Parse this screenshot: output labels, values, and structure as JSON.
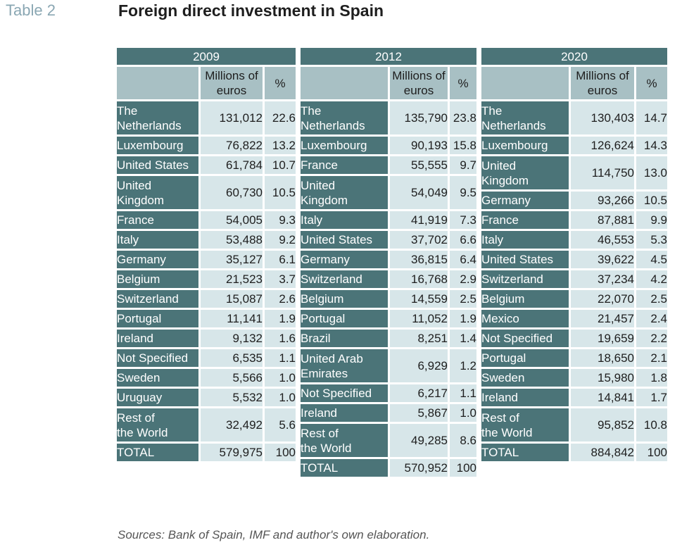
{
  "table_label": "Table 2",
  "title": "Foreign direct investment in Spain",
  "source": "Sources: Bank of Spain, IMF and author's own elaboration.",
  "tables": [
    {
      "year": "2009",
      "col_millions": "Millions of euros",
      "col_pct": "%",
      "rows": [
        {
          "country": "The Netherlands",
          "value": "131,012",
          "pct": "22.6"
        },
        {
          "country": "Luxembourg",
          "value": "76,822",
          "pct": "13.2"
        },
        {
          "country": "United States",
          "value": "61,784",
          "pct": "10.7"
        },
        {
          "country": "United Kingdom",
          "value": "60,730",
          "pct": "10.5"
        },
        {
          "country": "France",
          "value": "54,005",
          "pct": "9.3"
        },
        {
          "country": "Italy",
          "value": "53,488",
          "pct": "9.2"
        },
        {
          "country": "Germany",
          "value": "35,127",
          "pct": "6.1"
        },
        {
          "country": "Belgium",
          "value": "21,523",
          "pct": "3.7"
        },
        {
          "country": "Switzerland",
          "value": "15,087",
          "pct": "2.6"
        },
        {
          "country": "Portugal",
          "value": "11,141",
          "pct": "1.9"
        },
        {
          "country": "Ireland",
          "value": "9,132",
          "pct": "1.6"
        },
        {
          "country": "Not Specified",
          "value": "6,535",
          "pct": "1.1"
        },
        {
          "country": "Sweden",
          "value": "5,566",
          "pct": "1.0"
        },
        {
          "country": "Uruguay",
          "value": "5,532",
          "pct": "1.0"
        },
        {
          "country": "Rest of the World",
          "value": "32,492",
          "pct": "5.6"
        },
        {
          "country": "TOTAL",
          "value": "579,975",
          "pct": "100"
        }
      ]
    },
    {
      "year": "2012",
      "col_millions": "Millions of euros",
      "col_pct": "%",
      "rows": [
        {
          "country": "The Netherlands",
          "value": "135,790",
          "pct": "23.8"
        },
        {
          "country": "Luxembourg",
          "value": "90,193",
          "pct": "15.8"
        },
        {
          "country": "France",
          "value": "55,555",
          "pct": "9.7"
        },
        {
          "country": "United Kingdom",
          "value": "54,049",
          "pct": "9.5"
        },
        {
          "country": "Italy",
          "value": "41,919",
          "pct": "7.3"
        },
        {
          "country": "United States",
          "value": "37,702",
          "pct": "6.6"
        },
        {
          "country": "Germany",
          "value": "36,815",
          "pct": "6.4"
        },
        {
          "country": "Switzerland",
          "value": "16,768",
          "pct": "2.9"
        },
        {
          "country": "Belgium",
          "value": "14,559",
          "pct": "2.5"
        },
        {
          "country": "Portugal",
          "value": "11,052",
          "pct": "1.9"
        },
        {
          "country": "Brazil",
          "value": "8,251",
          "pct": "1.4"
        },
        {
          "country": "United Arab Emirates",
          "value": "6,929",
          "pct": "1.2"
        },
        {
          "country": "Not Specified",
          "value": "6,217",
          "pct": "1.1"
        },
        {
          "country": "Ireland",
          "value": "5,867",
          "pct": "1.0"
        },
        {
          "country": "Rest of the World",
          "value": "49,285",
          "pct": "8.6"
        },
        {
          "country": "TOTAL",
          "value": "570,952",
          "pct": "100"
        }
      ]
    },
    {
      "year": "2020",
      "col_millions": "Millions of euros",
      "col_pct": "%",
      "rows": [
        {
          "country": "The Netherlands",
          "value": "130,403",
          "pct": "14.7"
        },
        {
          "country": "Luxembourg",
          "value": "126,624",
          "pct": "14.3"
        },
        {
          "country": "United Kingdom",
          "value": "114,750",
          "pct": "13.0"
        },
        {
          "country": "Germany",
          "value": "93,266",
          "pct": "10.5"
        },
        {
          "country": "France",
          "value": "87,881",
          "pct": "9.9"
        },
        {
          "country": "Italy",
          "value": "46,553",
          "pct": "5.3"
        },
        {
          "country": "United States",
          "value": "39,622",
          "pct": "4.5"
        },
        {
          "country": "Switzerland",
          "value": "37,234",
          "pct": "4.2"
        },
        {
          "country": "Belgium",
          "value": "22,070",
          "pct": "2.5"
        },
        {
          "country": "Mexico",
          "value": "21,457",
          "pct": "2.4"
        },
        {
          "country": "Not Specified",
          "value": "19,659",
          "pct": "2.2"
        },
        {
          "country": "Portugal",
          "value": "18,650",
          "pct": "2.1"
        },
        {
          "country": "Sweden",
          "value": "15,980",
          "pct": "1.8"
        },
        {
          "country": "Ireland",
          "value": "14,841",
          "pct": "1.7"
        },
        {
          "country": "Rest of the World",
          "value": "95,852",
          "pct": "10.8"
        },
        {
          "country": "TOTAL",
          "value": "884,842",
          "pct": "100"
        }
      ]
    }
  ]
}
